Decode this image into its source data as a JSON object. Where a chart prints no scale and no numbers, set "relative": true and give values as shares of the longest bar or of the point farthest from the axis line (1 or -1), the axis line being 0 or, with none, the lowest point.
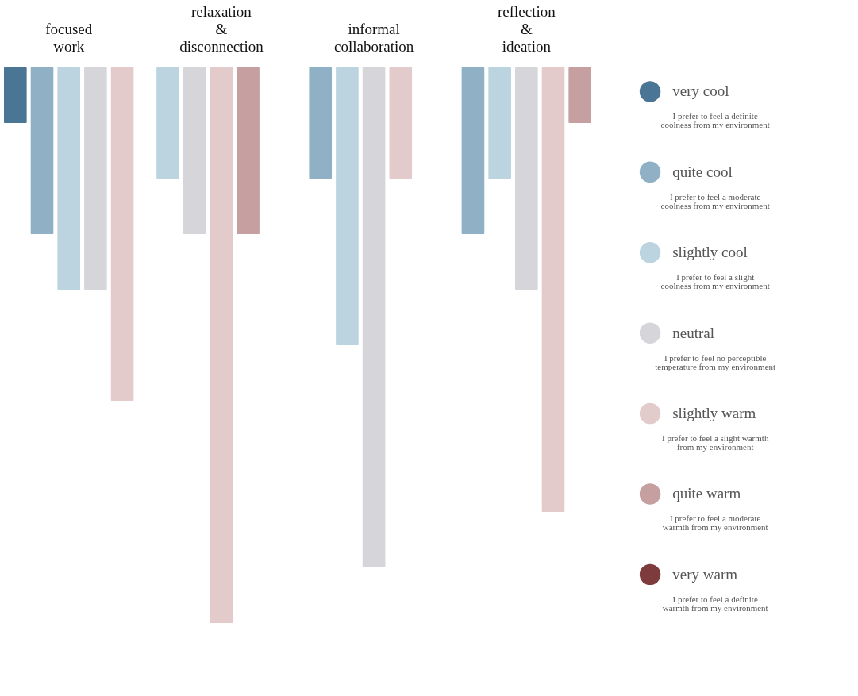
{
  "chart_data": {
    "type": "bar",
    "relative": true,
    "legend": "right",
    "categories": [
      "focused work",
      "relaxation & disconnection",
      "informal collaboration",
      "reflection & ideation"
    ],
    "series": [
      {
        "name": "very cool",
        "color": "#4a7594",
        "values": [
          -0.1,
          null,
          null,
          null
        ]
      },
      {
        "name": "quite cool",
        "color": "#8fb0c5",
        "values": [
          -0.3,
          null,
          -0.2,
          -0.3
        ]
      },
      {
        "name": "slightly cool",
        "color": "#bcd4e0",
        "values": [
          -0.4,
          -0.2,
          -0.5,
          -0.2
        ]
      },
      {
        "name": "neutral",
        "color": "#d6d6da",
        "values": [
          -0.4,
          -0.3,
          -0.9,
          -0.4
        ]
      },
      {
        "name": "slightly warm",
        "color": "#e3cbcb",
        "values": [
          -0.6,
          -1.0,
          -0.2,
          -0.8
        ]
      },
      {
        "name": "quite warm",
        "color": "#c6a0a0",
        "values": [
          null,
          -0.3,
          null,
          -0.1
        ]
      },
      {
        "name": "very warm",
        "color": "#7e3b3b",
        "values": [
          null,
          null,
          null,
          null
        ]
      }
    ],
    "annotations": [
      "I prefer to feel a definite coolness from my environment",
      "I prefer to feel a moderate coolness from my environment",
      "I prefer to feel a slight coolness from my environment",
      "I prefer to feel no perceptible temperature from my environment",
      "I prefer to feel a slight warmth from my environment",
      "I prefer to feel a moderate warmth from my environment",
      "I prefer to feel a definite warmth from my environment"
    ]
  }
}
